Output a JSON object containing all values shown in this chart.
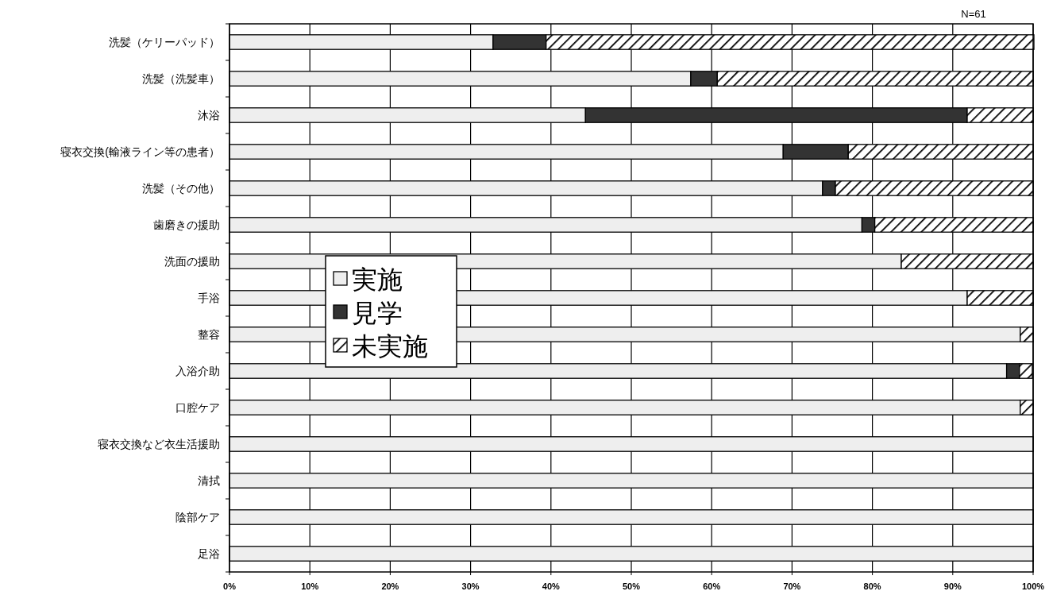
{
  "chart_data": {
    "type": "bar",
    "orientation": "horizontal",
    "stacked": true,
    "categories": [
      "洗髪（ケリーパッド）",
      "洗髪（洗髪車）",
      "沐浴",
      "寝衣交換(輸液ライン等の患者）",
      "洗髪（その他）",
      "歯磨きの援助",
      "洗面の援助",
      "手浴",
      "整容",
      "入浴介助",
      "口腔ケア",
      "寝衣交換など衣生活援助",
      "清拭",
      "陰部ケア",
      "足浴"
    ],
    "series": [
      {
        "name": "実施",
        "color": "#eeeeee",
        "values": [
          32.8,
          57.4,
          44.3,
          68.9,
          73.8,
          78.7,
          83.6,
          91.8,
          98.4,
          96.7,
          98.4,
          100,
          100,
          100,
          100
        ]
      },
      {
        "name": "見学",
        "color": "#333333",
        "values": [
          6.6,
          3.3,
          47.5,
          8.1,
          1.6,
          1.6,
          0,
          0,
          0,
          1.6,
          0,
          0,
          0,
          0,
          0
        ]
      },
      {
        "name": "未実施",
        "color": "#000000",
        "values": [
          60.7,
          39.3,
          8.2,
          23.0,
          24.6,
          19.7,
          16.4,
          8.2,
          1.6,
          1.6,
          1.6,
          0,
          0,
          0,
          0
        ]
      }
    ],
    "xlim": [
      0,
      100
    ],
    "xticks": [
      {
        "value": 0,
        "label": "0%"
      },
      {
        "value": 10,
        "label": "10%"
      },
      {
        "value": 20,
        "label": "20%"
      },
      {
        "value": 30,
        "label": "30%"
      },
      {
        "value": 40,
        "label": "40%"
      },
      {
        "value": 50,
        "label": "50%"
      },
      {
        "value": 60,
        "label": "60%"
      },
      {
        "value": 70,
        "label": "70%"
      },
      {
        "value": 80,
        "label": "80%"
      },
      {
        "value": 90,
        "label": "90%"
      },
      {
        "value": 100,
        "label": "100%"
      }
    ],
    "grid": "x",
    "legend": "left",
    "annotations": [
      "N=61"
    ]
  }
}
